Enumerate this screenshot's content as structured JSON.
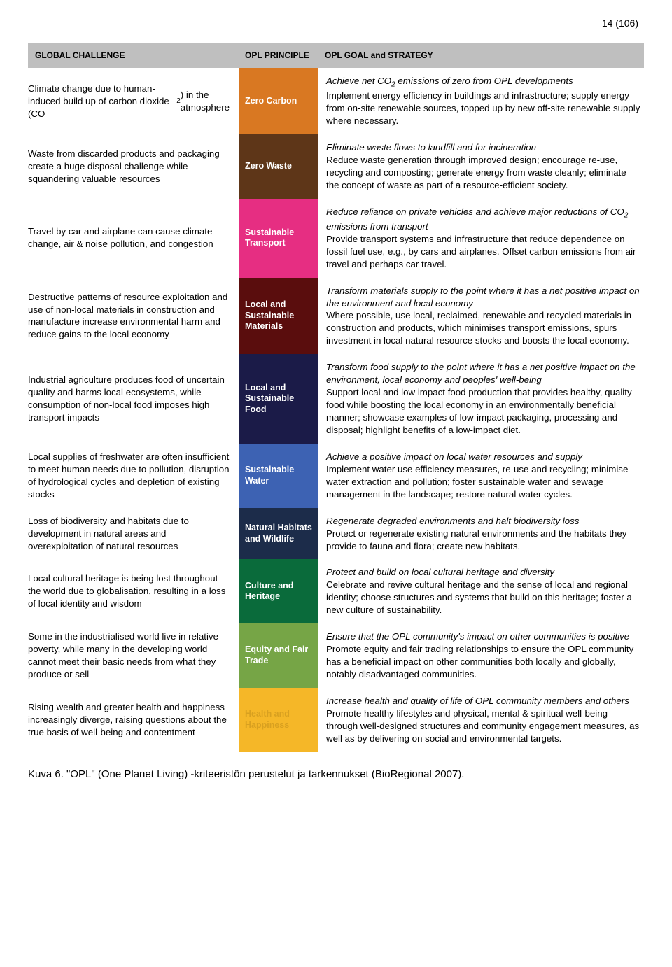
{
  "page_number": "14 (106)",
  "header": {
    "challenge": "GLOBAL CHALLENGE",
    "principle": "OPL PRINCIPLE",
    "goal": "OPL GOAL and STRATEGY"
  },
  "header_bg": "#bfbfbf",
  "rows": [
    {
      "challenge": "Climate change due to human-induced build up of carbon dioxide (CO<sub>2</sub>) in the atmosphere",
      "principle": "Zero Carbon",
      "color": "#d97822",
      "goal_heading": "Achieve net CO<sub>2</sub> emissions of zero from OPL developments",
      "goal_body": "Implement energy efficiency in buildings and infrastructure; supply energy from on-site renewable sources, topped up by new off-site renewable supply where necessary."
    },
    {
      "challenge": "Waste from discarded products and packaging create a huge disposal challenge while squandering valuable resources",
      "principle": "Zero Waste",
      "color": "#5e3618",
      "goal_heading": "Eliminate waste flows to landfill and for incineration",
      "goal_body": "Reduce waste generation through improved design; encourage re-use, recycling and composting; generate energy from waste cleanly; eliminate the concept of waste as part of a resource-efficient society."
    },
    {
      "challenge": "Travel by car and airplane can cause climate change, air & noise pollution, and congestion",
      "principle": "Sustainable Transport",
      "color": "#e62e82",
      "goal_heading": "Reduce reliance on private vehicles and achieve major reductions of CO<sub>2</sub> emissions from transport",
      "goal_body": "Provide transport systems and infrastructure that reduce dependence on fossil fuel use, e.g., by cars and airplanes. Offset carbon emissions from air travel and perhaps car travel."
    },
    {
      "challenge": "Destructive patterns of resource exploitation and use of non-local materials in construction and manufacture increase environmental harm and reduce gains to the local economy",
      "principle": "Local and Sustainable Materials",
      "color": "#5a0d0d",
      "goal_heading": "Transform materials supply to the point where it has a net positive impact on the environment and local economy",
      "goal_body": "Where possible, use local, reclaimed, renewable and recycled materials in construction and products, which minimises transport emissions, spurs investment in local natural resource stocks and boosts the local economy."
    },
    {
      "challenge": "Industrial agriculture produces food of uncertain quality and harms local ecosystems, while consumption of non-local food imposes high transport impacts",
      "principle": "Local and Sustainable Food",
      "color": "#1b1b48",
      "goal_heading": "Transform food supply to the point where it has a net positive impact on the environment, local economy and peoples' well-being",
      "goal_body": "Support local and low impact food production that provides healthy, quality food while boosting the local economy in an environmentally beneficial manner; showcase examples of low-impact packaging, processing and disposal; highlight benefits of a low-impact diet."
    },
    {
      "challenge": "Local supplies of freshwater are often insufficient to meet human needs due to pollution, disruption of hydrological cycles and depletion of existing stocks",
      "principle": "Sustainable Water",
      "color": "#3d62b3",
      "goal_heading": "Achieve a positive impact on local water resources and supply",
      "goal_body": "Implement water use efficiency measures, re-use and recycling; minimise water extraction and pollution; foster sustainable water and sewage management in the landscape; restore natural water cycles."
    },
    {
      "challenge": "Loss of biodiversity and habitats due to development in natural areas and overexploitation of natural resources",
      "principle": "Natural Habitats and Wildlife",
      "color": "#1c2c4a",
      "goal_heading": "Regenerate degraded environments and halt biodiversity loss",
      "goal_body": "Protect or regenerate existing natural environments and the habitats they provide to fauna and flora; create new habitats."
    },
    {
      "challenge": "Local cultural heritage is being lost throughout the world due to globalisation, resulting in a loss of local identity and wisdom",
      "principle": "Culture and Heritage",
      "color": "#0a6b3b",
      "goal_heading": "Protect and build on local cultural heritage and diversity",
      "goal_body": "Celebrate and revive cultural heritage and the sense of local and regional identity; choose structures and systems that build on this heritage; foster a new culture of sustainability."
    },
    {
      "challenge": "Some in the industrialised world live in relative poverty, while many in the developing world cannot meet their basic needs from what they produce or sell",
      "principle": "Equity and Fair Trade",
      "color": "#76a546",
      "goal_heading": "Ensure that the OPL community's impact on other communities is positive",
      "goal_body": "Promote equity and fair trading relationships to ensure the OPL community has a beneficial impact on other communities both locally and globally, notably disadvantaged communities."
    },
    {
      "challenge": "Rising wealth and greater health and happiness increasingly diverge, raising questions about the true basis of well-being and contentment",
      "principle": "Health and Happiness",
      "color": "#f5b728",
      "principle_text_color": "#d8a020",
      "goal_heading": "Increase health and quality of life of OPL community members and others",
      "goal_body": "Promote healthy lifestyles and physical, mental & spiritual well-being through well-designed structures and community engagement measures, as well as by delivering on social and environmental targets."
    }
  ],
  "caption": "Kuva 6. \"OPL\" (One Planet Living) -kriteeristön perustelut ja tarkennukset (BioRegional 2007)."
}
